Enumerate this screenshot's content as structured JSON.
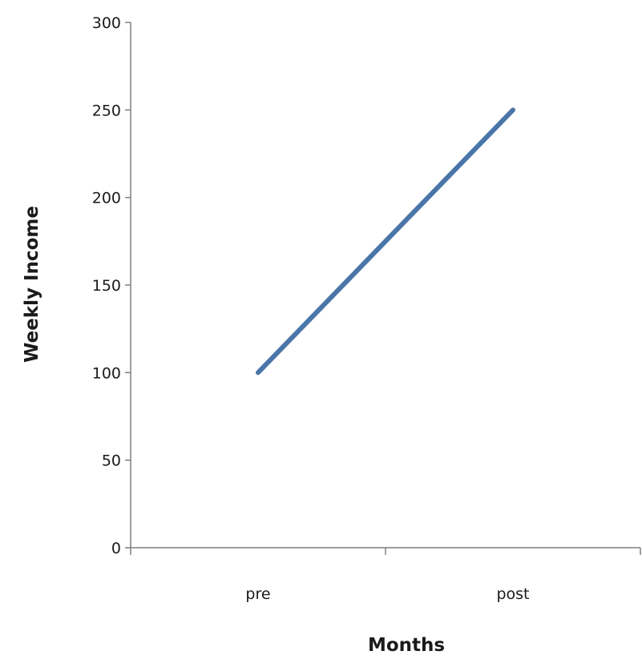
{
  "chart_data": {
    "type": "line",
    "title": "",
    "xlabel": "Months",
    "ylabel": "Weekly Income",
    "categories": [
      "pre",
      "post"
    ],
    "series": [
      {
        "values": [
          100,
          250
        ],
        "color": "#4a75a8"
      }
    ],
    "ylim": [
      0,
      300
    ],
    "yticks": [
      0,
      50,
      100,
      150,
      200,
      250,
      300
    ],
    "ytick_labels": [
      "0",
      "50",
      "100",
      "150",
      "200",
      "250",
      "300"
    ],
    "grid": false,
    "legend": "none"
  }
}
